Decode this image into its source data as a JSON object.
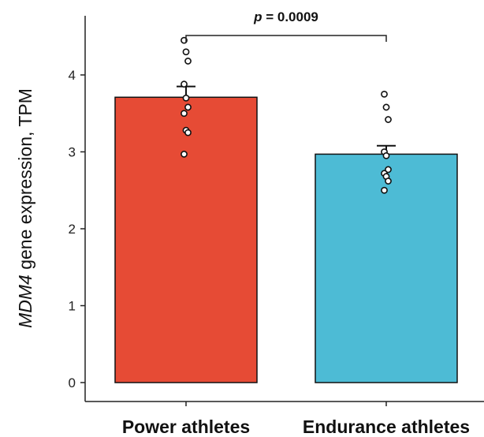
{
  "chart_data": {
    "type": "bar",
    "ylabel_gene": "MDM4",
    "ylabel_rest": " gene expression, TPM",
    "categories": [
      "Power athletes",
      "Endurance athletes"
    ],
    "values": [
      3.71,
      2.97
    ],
    "errors": [
      0.14,
      0.11
    ],
    "colors": [
      "#e64b35",
      "#4dbbd5"
    ],
    "ylim": [
      0,
      4.75
    ],
    "yticks": [
      "0",
      "1",
      "2",
      "3",
      "4"
    ],
    "points": [
      [
        4.45,
        4.3,
        4.18,
        3.88,
        3.7,
        3.58,
        3.5,
        3.28,
        3.25,
        2.97
      ],
      [
        3.75,
        3.58,
        3.42,
        3.0,
        2.95,
        2.77,
        2.72,
        2.68,
        2.62,
        2.5
      ]
    ],
    "comparison": {
      "p_symbol": "p",
      "p_text": " = 0.0009"
    },
    "grid": false
  }
}
